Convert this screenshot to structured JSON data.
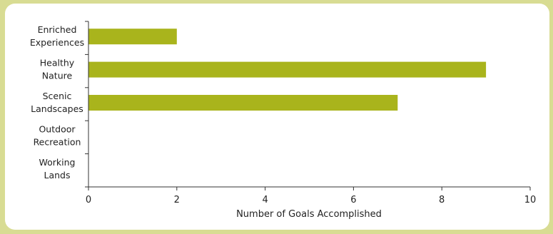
{
  "chart_data": {
    "type": "bar",
    "orientation": "horizontal",
    "categories": [
      [
        "Enriched",
        "Experiences"
      ],
      [
        "Healthy",
        "Nature"
      ],
      [
        "Scenic",
        "Landscapes"
      ],
      [
        "Outdoor",
        "Recreation"
      ],
      [
        "Working",
        "Lands"
      ]
    ],
    "values": [
      2,
      9,
      7,
      0,
      0
    ],
    "xlabel": "Number of Goals Accomplished",
    "ylabel": "",
    "xlim": [
      0,
      10
    ],
    "xticks": [
      0,
      2,
      4,
      6,
      8,
      10
    ],
    "bar_color": "#a9b41c",
    "grid": false
  },
  "colors": {
    "background": "#d8dc93",
    "panel": "#ffffff",
    "axis": "#333333"
  }
}
